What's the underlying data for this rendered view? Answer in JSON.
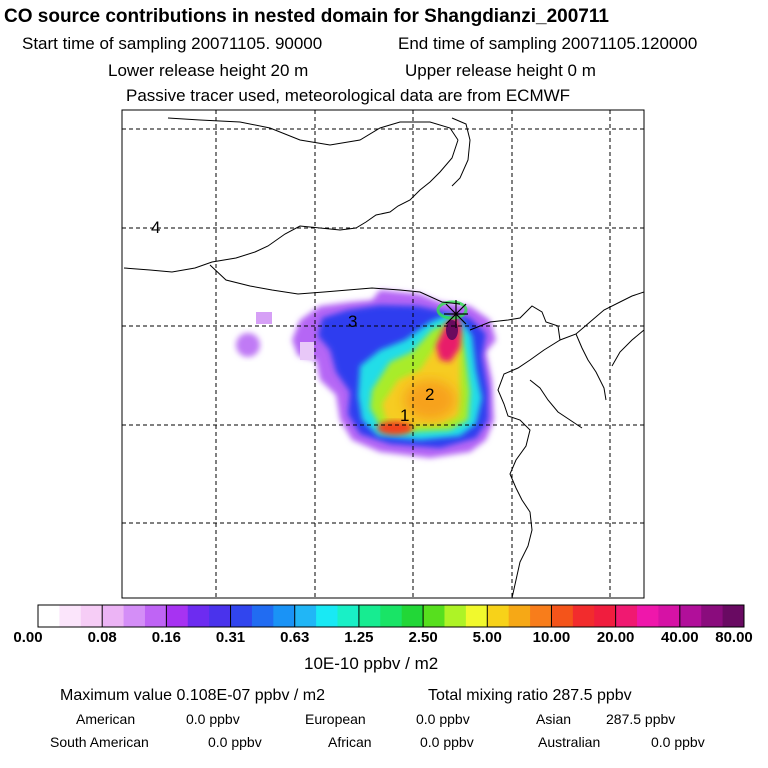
{
  "header": {
    "title": "CO  source contributions in nested domain for Shangdianzi_200711",
    "start_label": "Start time of sampling 20071105. 90000",
    "end_label": "End time of sampling 20071105.120000",
    "lower_height": "Lower release height   20 m",
    "upper_height": "Upper release height    0 m",
    "tracer_note": "Passive tracer used, meteorological data are from ECMWF"
  },
  "map": {
    "region_labels": [
      "4",
      "3",
      "2",
      "1"
    ],
    "site_marker": "receptor-site-star"
  },
  "colorbar": {
    "colors": [
      "#ffffff",
      "#fbe5fb",
      "#f6cdf6",
      "#ecb4f5",
      "#d48ef7",
      "#bf64f5",
      "#a733f2",
      "#6d2cf0",
      "#4a33ec",
      "#3145ee",
      "#216cf2",
      "#1a93f6",
      "#21b6f6",
      "#19e9f4",
      "#19f0c6",
      "#17ec91",
      "#19e466",
      "#22d737",
      "#57df1e",
      "#aef326",
      "#f1f92d",
      "#f7d219",
      "#f6a816",
      "#f87d1b",
      "#f4541a",
      "#f22c2d",
      "#f01d3e",
      "#f01971",
      "#ef17ab",
      "#d612a5",
      "#b10f9a",
      "#8a0c7d",
      "#690a62"
    ],
    "tick_labels": [
      "0.00",
      "0.08",
      "0.16",
      "0.31",
      "0.63",
      "1.25",
      "2.50",
      "5.00",
      "10.00",
      "20.00",
      "40.00",
      "80.00"
    ],
    "unit": "10E-10 ppbv / m2"
  },
  "stats": {
    "max_value": "Maximum value  0.108E-07 ppbv / m2",
    "total_mixing": "Total mixing ratio     287.5 ppbv",
    "american": "American",
    "american_val": "0.0 ppbv",
    "european": "European",
    "european_val": "0.0 ppbv",
    "asian": "Asian",
    "asian_val": "287.5 ppbv",
    "south_american": "South American",
    "south_american_val": "0.0 ppbv",
    "african": "African",
    "african_val": "0.0 ppbv",
    "australian": "Australian",
    "australian_val": "0.0 ppbv"
  }
}
